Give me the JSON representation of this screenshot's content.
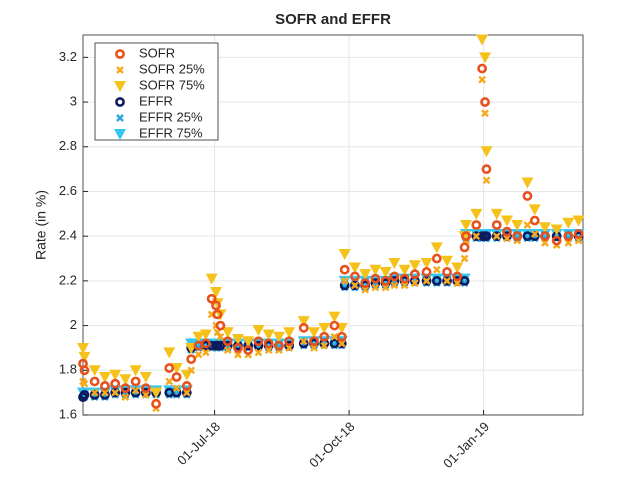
{
  "chart_data": {
    "type": "scatter",
    "title": "SOFR and EFFR",
    "y_label": "Rate (in %)",
    "x": [
      "2018-04-02",
      "2018-04-03",
      "2018-04-10",
      "2018-04-17",
      "2018-04-24",
      "2018-05-01",
      "2018-05-08",
      "2018-05-15",
      "2018-05-22",
      "2018-05-31",
      "2018-06-05",
      "2018-06-12",
      "2018-06-15",
      "2018-06-20",
      "2018-06-25",
      "2018-06-29",
      "2018-07-02",
      "2018-07-03",
      "2018-07-05",
      "2018-07-10",
      "2018-07-17",
      "2018-07-24",
      "2018-07-31",
      "2018-08-07",
      "2018-08-14",
      "2018-08-21",
      "2018-08-31",
      "2018-09-07",
      "2018-09-14",
      "2018-09-21",
      "2018-09-26",
      "2018-09-28",
      "2018-10-05",
      "2018-10-12",
      "2018-10-19",
      "2018-10-26",
      "2018-11-01",
      "2018-11-08",
      "2018-11-15",
      "2018-11-23",
      "2018-11-30",
      "2018-12-07",
      "2018-12-14",
      "2018-12-19",
      "2018-12-20",
      "2018-12-27",
      "2018-12-31",
      "2019-01-02",
      "2019-01-03",
      "2019-01-10",
      "2019-01-17",
      "2019-01-24",
      "2019-01-31",
      "2019-02-05",
      "2019-02-12",
      "2019-02-20",
      "2019-02-28",
      "2019-03-07"
    ],
    "series": [
      {
        "name": "SOFR",
        "color": "#e8501c",
        "marker": "o",
        "values": [
          1.83,
          1.8,
          1.75,
          1.73,
          1.74,
          1.72,
          1.75,
          1.72,
          1.65,
          1.81,
          1.77,
          1.73,
          1.85,
          1.91,
          1.92,
          2.12,
          2.09,
          2.05,
          2.0,
          1.93,
          1.9,
          1.89,
          1.93,
          1.92,
          1.91,
          1.93,
          1.99,
          1.93,
          1.95,
          2.0,
          1.95,
          2.25,
          2.22,
          2.19,
          2.21,
          2.2,
          2.22,
          2.21,
          2.23,
          2.24,
          2.3,
          2.24,
          2.22,
          2.35,
          2.4,
          2.45,
          3.15,
          3.0,
          2.7,
          2.45,
          2.42,
          2.4,
          2.58,
          2.47,
          2.4,
          2.38,
          2.4,
          2.41
        ]
      },
      {
        "name": "SOFR 25%",
        "color": "#f7a81b",
        "marker": "x",
        "values": [
          1.75,
          1.74,
          1.7,
          1.7,
          1.7,
          1.68,
          1.71,
          1.69,
          1.63,
          1.75,
          1.72,
          1.7,
          1.8,
          1.87,
          1.88,
          2.05,
          2.0,
          1.97,
          1.95,
          1.89,
          1.87,
          1.87,
          1.88,
          1.89,
          1.89,
          1.9,
          1.93,
          1.9,
          1.91,
          1.95,
          1.92,
          2.2,
          2.18,
          2.16,
          2.17,
          2.17,
          2.18,
          2.18,
          2.19,
          2.2,
          2.25,
          2.2,
          2.19,
          2.3,
          2.38,
          2.4,
          3.1,
          2.95,
          2.65,
          2.4,
          2.39,
          2.38,
          2.45,
          2.41,
          2.37,
          2.36,
          2.37,
          2.38
        ]
      },
      {
        "name": "SOFR 75%",
        "color": "#f5c21b",
        "marker": "v",
        "values": [
          1.9,
          1.86,
          1.8,
          1.77,
          1.78,
          1.76,
          1.8,
          1.77,
          1.7,
          1.88,
          1.81,
          1.78,
          1.9,
          1.95,
          1.96,
          2.21,
          2.15,
          2.1,
          2.05,
          1.97,
          1.94,
          1.93,
          1.98,
          1.96,
          1.95,
          1.97,
          2.02,
          1.97,
          1.99,
          2.04,
          1.99,
          2.32,
          2.26,
          2.23,
          2.25,
          2.24,
          2.28,
          2.25,
          2.27,
          2.28,
          2.35,
          2.29,
          2.26,
          2.4,
          2.45,
          2.5,
          3.28,
          3.2,
          2.78,
          2.5,
          2.47,
          2.45,
          2.64,
          2.52,
          2.44,
          2.43,
          2.46,
          2.47
        ]
      },
      {
        "name": "EFFR",
        "color": "#0c1a5e",
        "marker": "o",
        "values": [
          1.68,
          1.69,
          1.69,
          1.69,
          1.7,
          1.7,
          1.7,
          1.7,
          1.7,
          1.7,
          1.7,
          1.7,
          1.9,
          1.91,
          1.91,
          1.91,
          1.91,
          1.91,
          1.91,
          1.91,
          1.91,
          1.91,
          1.91,
          1.91,
          1.91,
          1.91,
          1.92,
          1.92,
          1.92,
          1.92,
          1.92,
          2.18,
          2.18,
          2.18,
          2.19,
          2.19,
          2.2,
          2.2,
          2.2,
          2.2,
          2.2,
          2.2,
          2.2,
          2.2,
          2.4,
          2.4,
          2.4,
          2.4,
          2.4,
          2.4,
          2.4,
          2.4,
          2.4,
          2.4,
          2.4,
          2.4,
          2.4,
          2.4
        ]
      },
      {
        "name": "EFFR 25%",
        "color": "#2aa6e0",
        "marker": "x",
        "values": [
          1.68,
          1.68,
          1.68,
          1.68,
          1.69,
          1.69,
          1.69,
          1.69,
          1.69,
          1.69,
          1.69,
          1.69,
          1.89,
          1.9,
          1.9,
          1.9,
          1.9,
          1.9,
          1.9,
          1.9,
          1.9,
          1.9,
          1.9,
          1.9,
          1.9,
          1.9,
          1.91,
          1.91,
          1.91,
          1.91,
          1.91,
          2.17,
          2.17,
          2.17,
          2.18,
          2.18,
          2.19,
          2.19,
          2.19,
          2.19,
          2.19,
          2.19,
          2.19,
          2.19,
          2.39,
          2.39,
          2.39,
          2.39,
          2.39,
          2.39,
          2.39,
          2.39,
          2.39,
          2.39,
          2.39,
          2.39,
          2.39,
          2.39
        ]
      },
      {
        "name": "EFFR 75%",
        "color": "#35c6f2",
        "marker": "v",
        "values": [
          1.7,
          1.7,
          1.7,
          1.7,
          1.71,
          1.71,
          1.71,
          1.71,
          1.71,
          1.71,
          1.71,
          1.71,
          1.92,
          1.92,
          1.92,
          1.92,
          1.92,
          1.92,
          1.92,
          1.92,
          1.92,
          1.92,
          1.92,
          1.92,
          1.92,
          1.92,
          1.93,
          1.93,
          1.93,
          1.93,
          1.93,
          2.2,
          2.2,
          2.2,
          2.2,
          2.2,
          2.21,
          2.21,
          2.21,
          2.21,
          2.21,
          2.21,
          2.21,
          2.21,
          2.41,
          2.41,
          2.41,
          2.41,
          2.41,
          2.41,
          2.41,
          2.41,
          2.41,
          2.41,
          2.41,
          2.41,
          2.41,
          2.41
        ]
      }
    ],
    "xlim": [
      "2018-04-02",
      "2019-03-10"
    ],
    "xticks": [
      {
        "value": "2018-07-01",
        "label": "01-Jul-18"
      },
      {
        "value": "2018-10-01",
        "label": "01-Oct-18"
      },
      {
        "value": "2019-01-01",
        "label": "01-Jan-19"
      }
    ],
    "ylim": [
      1.6,
      3.3
    ],
    "yticks": [
      1.6,
      1.8,
      2,
      2.2,
      2.4,
      2.6,
      2.8,
      3,
      3.2
    ],
    "grid": true,
    "legend": "northwest"
  }
}
